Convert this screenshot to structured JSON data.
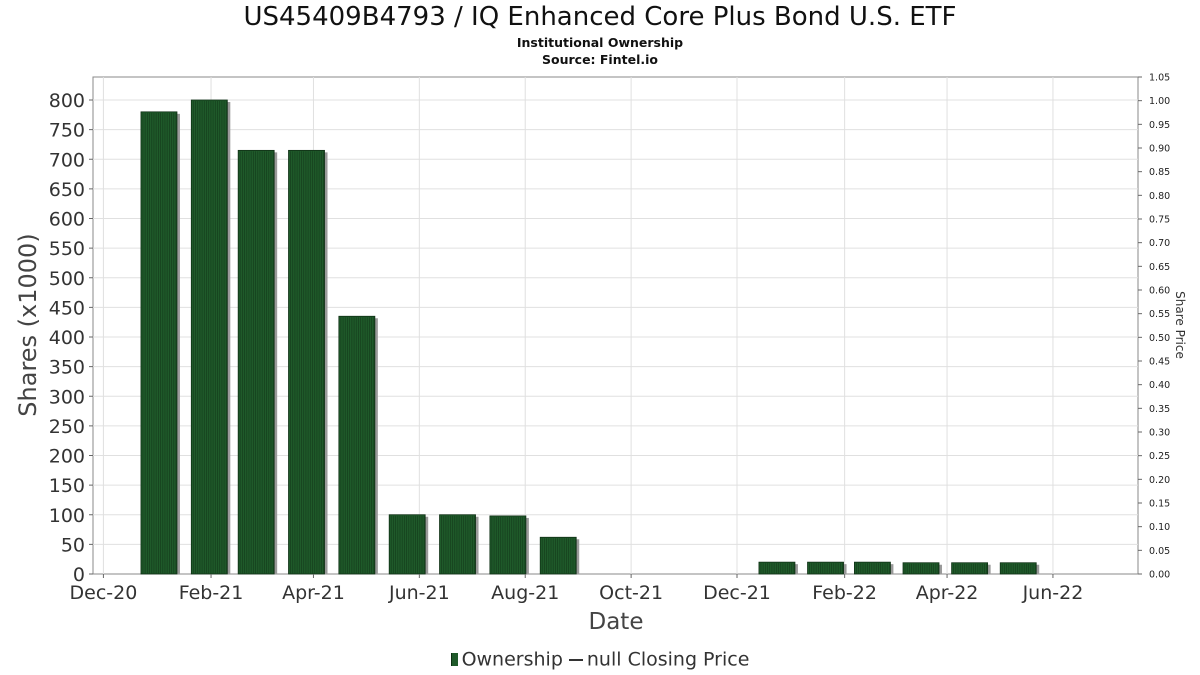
{
  "chart_data": {
    "type": "bar",
    "title": "US45409B4793 / IQ Enhanced Core Plus Bond U.S. ETF",
    "subtitle_lines": [
      "Institutional Ownership",
      "Source: Fintel.io"
    ],
    "xlabel": "Date",
    "ylabel": "Shares (x1000)",
    "y2label": "Share Price",
    "ylim": [
      0,
      820
    ],
    "y_ticks": [
      0,
      50,
      100,
      150,
      200,
      250,
      300,
      350,
      400,
      450,
      500,
      550,
      600,
      650,
      700,
      750,
      800
    ],
    "y2lim": [
      0,
      1.05
    ],
    "y2_ticks": [
      "0.00",
      "0.05",
      "0.10",
      "0.15",
      "0.20",
      "0.25",
      "0.30",
      "0.35",
      "0.40",
      "0.45",
      "0.50",
      "0.55",
      "0.60",
      "0.65",
      "0.70",
      "0.75",
      "0.80",
      "0.85",
      "0.90",
      "0.95",
      "1.00",
      "1.05"
    ],
    "x_range": [
      "2020-11-25",
      "2022-07-20"
    ],
    "x_ticks": [
      {
        "date": "2020-12-01",
        "label": "Dec-20"
      },
      {
        "date": "2021-02-01",
        "label": "Feb-21"
      },
      {
        "date": "2021-04-01",
        "label": "Apr-21"
      },
      {
        "date": "2021-06-01",
        "label": "Jun-21"
      },
      {
        "date": "2021-08-01",
        "label": "Aug-21"
      },
      {
        "date": "2021-10-01",
        "label": "Oct-21"
      },
      {
        "date": "2021-12-01",
        "label": "Dec-21"
      },
      {
        "date": "2022-02-01",
        "label": "Feb-22"
      },
      {
        "date": "2022-04-01",
        "label": "Apr-22"
      },
      {
        "date": "2022-06-01",
        "label": "Jun-22"
      }
    ],
    "grid": true,
    "legend_placement": "bottom",
    "series": [
      {
        "name": "Ownership",
        "color": "#1f5a2a",
        "points": [
          {
            "date": "2021-01-02",
            "value": 780
          },
          {
            "date": "2021-01-31",
            "value": 800
          },
          {
            "date": "2021-02-27",
            "value": 715
          },
          {
            "date": "2021-03-28",
            "value": 715
          },
          {
            "date": "2021-04-26",
            "value": 435
          },
          {
            "date": "2021-05-25",
            "value": 100
          },
          {
            "date": "2021-06-23",
            "value": 100
          },
          {
            "date": "2021-07-22",
            "value": 98
          },
          {
            "date": "2021-08-20",
            "value": 62
          },
          {
            "date": "2021-12-24",
            "value": 20
          },
          {
            "date": "2022-01-21",
            "value": 20
          },
          {
            "date": "2022-02-17",
            "value": 20
          },
          {
            "date": "2022-03-17",
            "value": 19
          },
          {
            "date": "2022-04-14",
            "value": 19
          },
          {
            "date": "2022-05-12",
            "value": 19
          }
        ]
      }
    ],
    "legend": [
      {
        "label": "Ownership",
        "kind": "bar"
      },
      {
        "label": "null Closing Price",
        "kind": "line"
      }
    ]
  }
}
